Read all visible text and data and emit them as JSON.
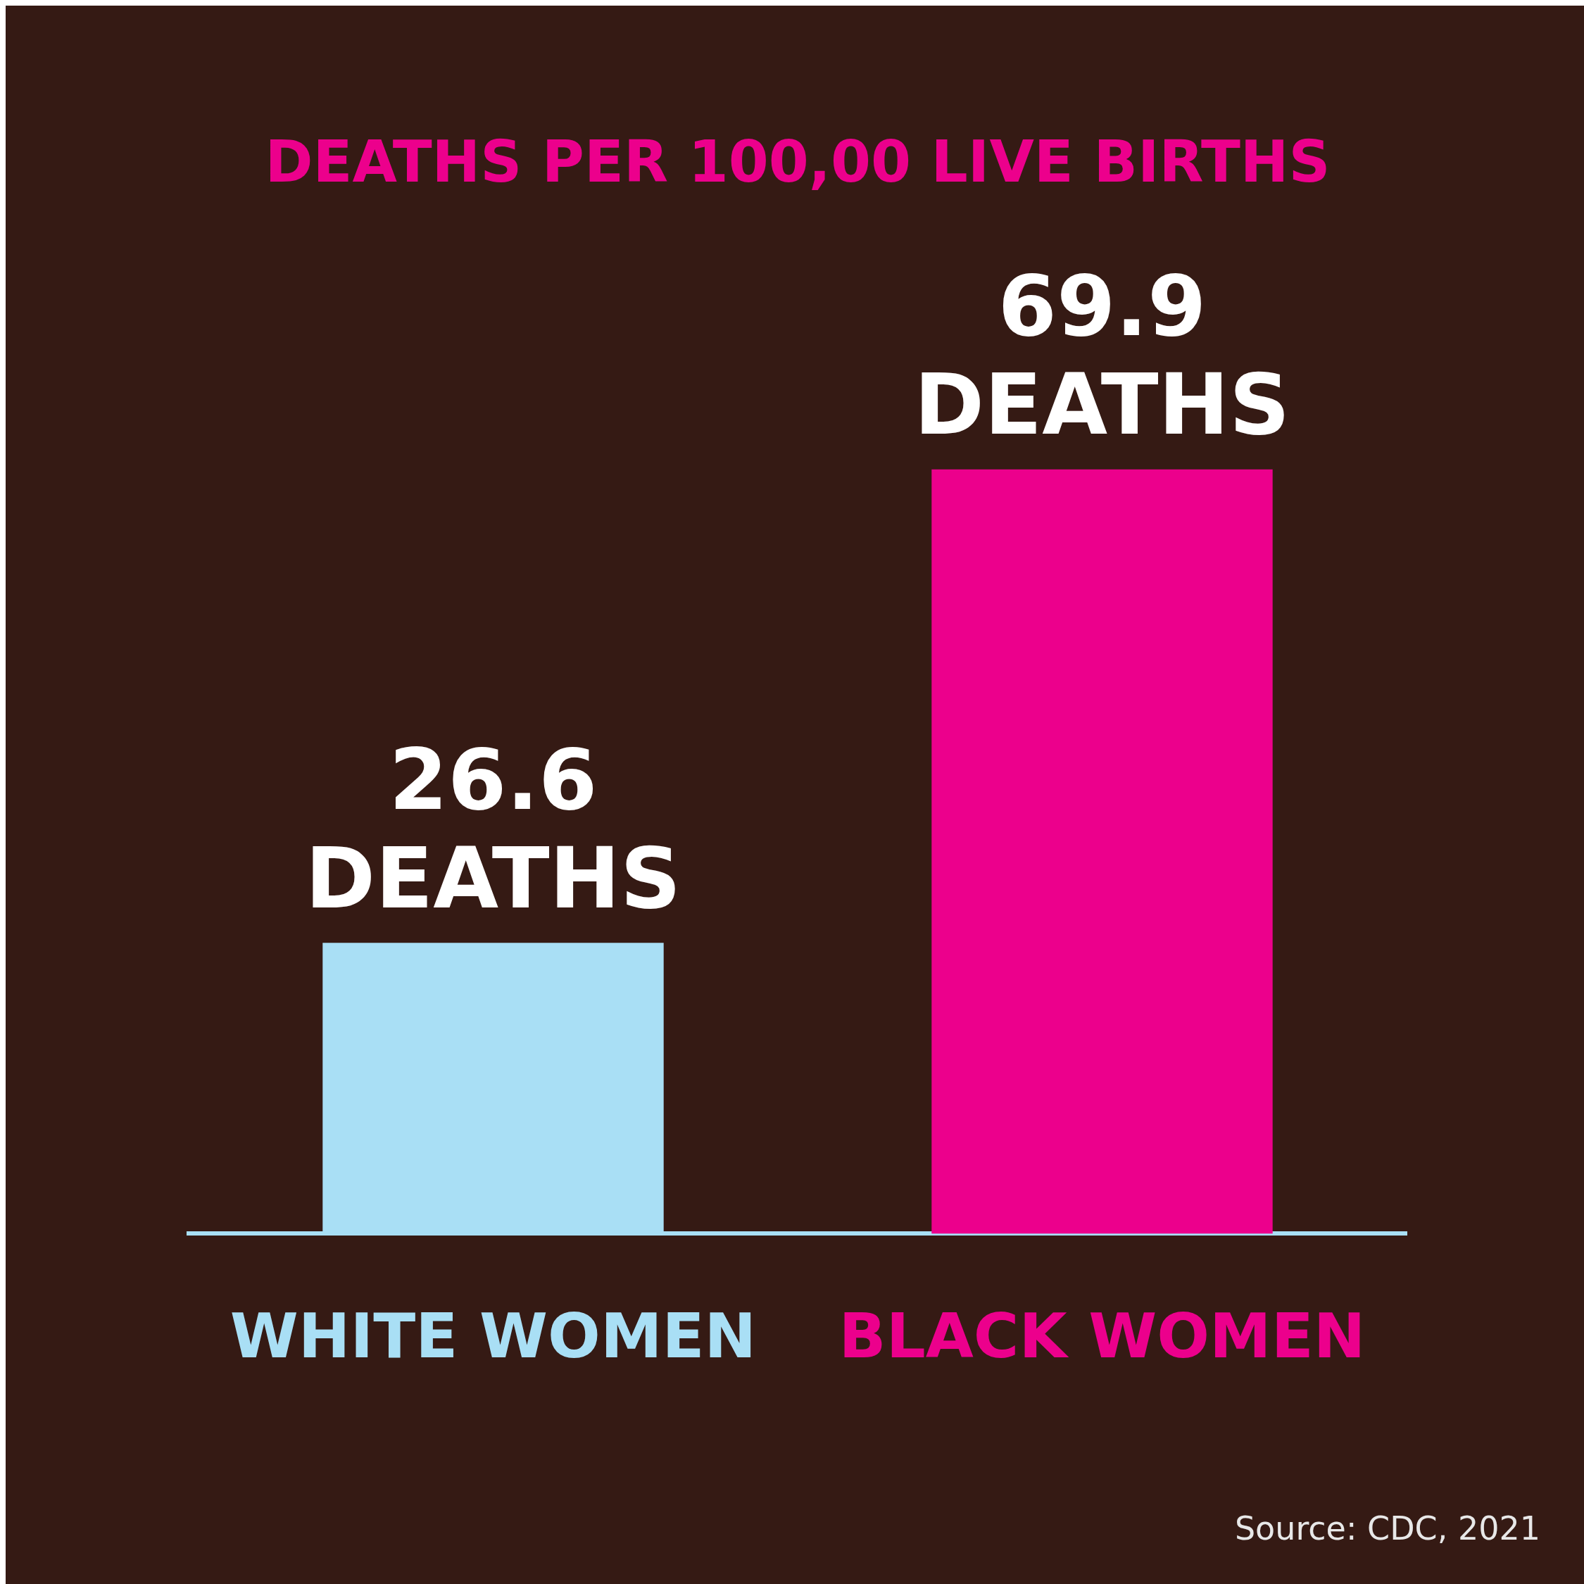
{
  "chart_data": {
    "type": "bar",
    "title": "DEATHS PER 100,00 LIVE BIRTHS",
    "categories": [
      "WHITE WOMEN",
      "BLACK WOMEN"
    ],
    "values": [
      26.6,
      69.9
    ],
    "colors": [
      "#a9dff5",
      "#ec008c"
    ],
    "value_labels": [
      "26.6 DEATHS",
      "69.9 DEATHS"
    ],
    "grid": false,
    "legend": false,
    "tick_labels": "x",
    "annotations": [
      "Source: CDC, 2021"
    ]
  }
}
